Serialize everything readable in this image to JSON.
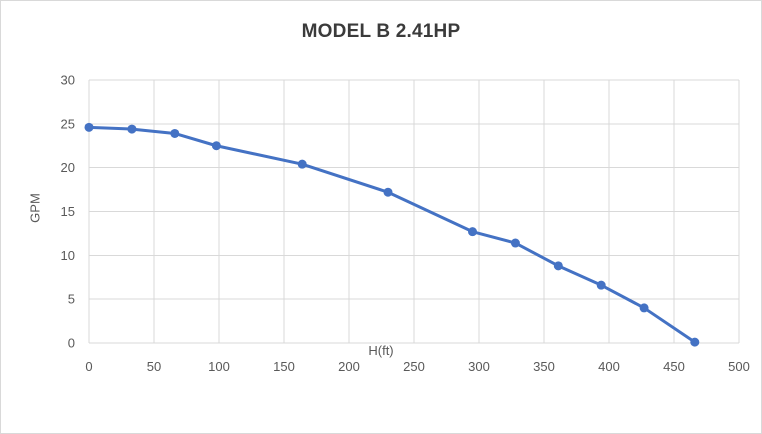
{
  "chart_data": {
    "type": "line",
    "title": "MODEL B 2.41HP",
    "xlabel": "H(ft)",
    "ylabel": "GPM",
    "x": [
      0,
      33,
      66,
      98,
      164,
      230,
      295,
      328,
      361,
      394,
      427,
      466
    ],
    "y": [
      24.6,
      24.4,
      23.9,
      22.5,
      20.4,
      17.2,
      12.7,
      11.4,
      8.8,
      6.6,
      4.0,
      0.1
    ],
    "xlim": [
      0,
      500
    ],
    "ylim": [
      0,
      30
    ],
    "xticks": [
      0,
      50,
      100,
      150,
      200,
      250,
      300,
      350,
      400,
      450,
      500
    ],
    "yticks": [
      0,
      5,
      10,
      15,
      20,
      25,
      30
    ],
    "grid": true,
    "legend_position": "none",
    "marker": "circle",
    "colors": {
      "line": "#4472C4",
      "marker": "#4472C4",
      "grid": "#D9D9D9",
      "tick_text": "#595959",
      "title_text": "#3B3B3B",
      "axis_title_text": "#595959",
      "background": "#FFFFFF",
      "border": "#D9D9D9"
    }
  }
}
